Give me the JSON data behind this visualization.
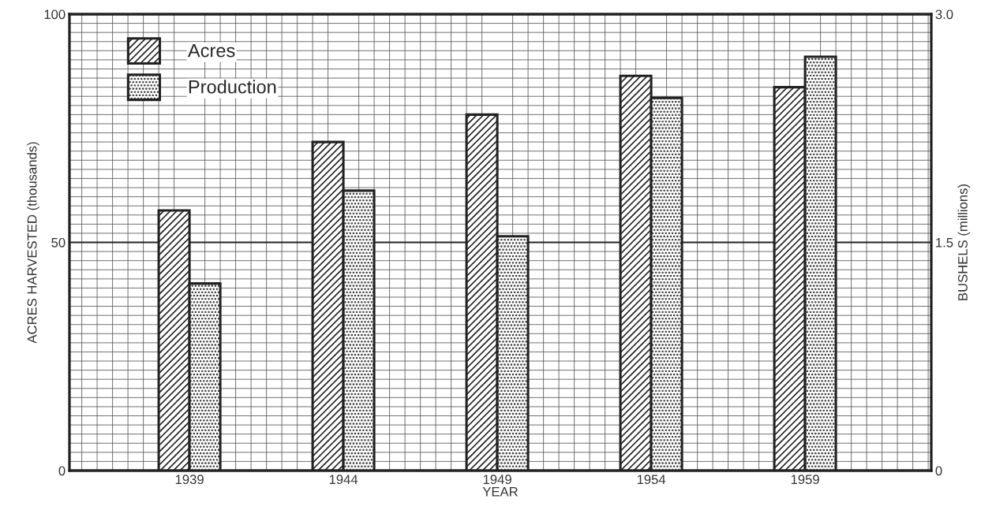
{
  "chart_data": {
    "type": "bar",
    "categories": [
      "1939",
      "1944",
      "1949",
      "1954",
      "1959"
    ],
    "series": [
      {
        "name": "Acres",
        "color": "#222222",
        "values": [
          57,
          72,
          78,
          86.5,
          84
        ]
      },
      {
        "name": "Production",
        "color": "#222222",
        "axis": "y2",
        "values": [
          1.23,
          1.84,
          1.54,
          2.45,
          2.72
        ]
      }
    ],
    "xlabel": "YEAR",
    "ylabel": "ACRES HARVESTED (thousands)",
    "y2label": "BUSHELS (millions)",
    "ylim": [
      0,
      100
    ],
    "yticks": [
      0,
      50,
      100
    ],
    "y2lim": [
      0,
      3.0
    ],
    "y2ticks": [
      0,
      {
        "value": 1.5,
        "label": "1.5"
      },
      {
        "value": 3.0,
        "label": "3.0"
      }
    ],
    "ref_lines": [
      {
        "axis": "y",
        "value": 50,
        "label": null
      }
    ],
    "grid": true,
    "legend": "top left"
  }
}
